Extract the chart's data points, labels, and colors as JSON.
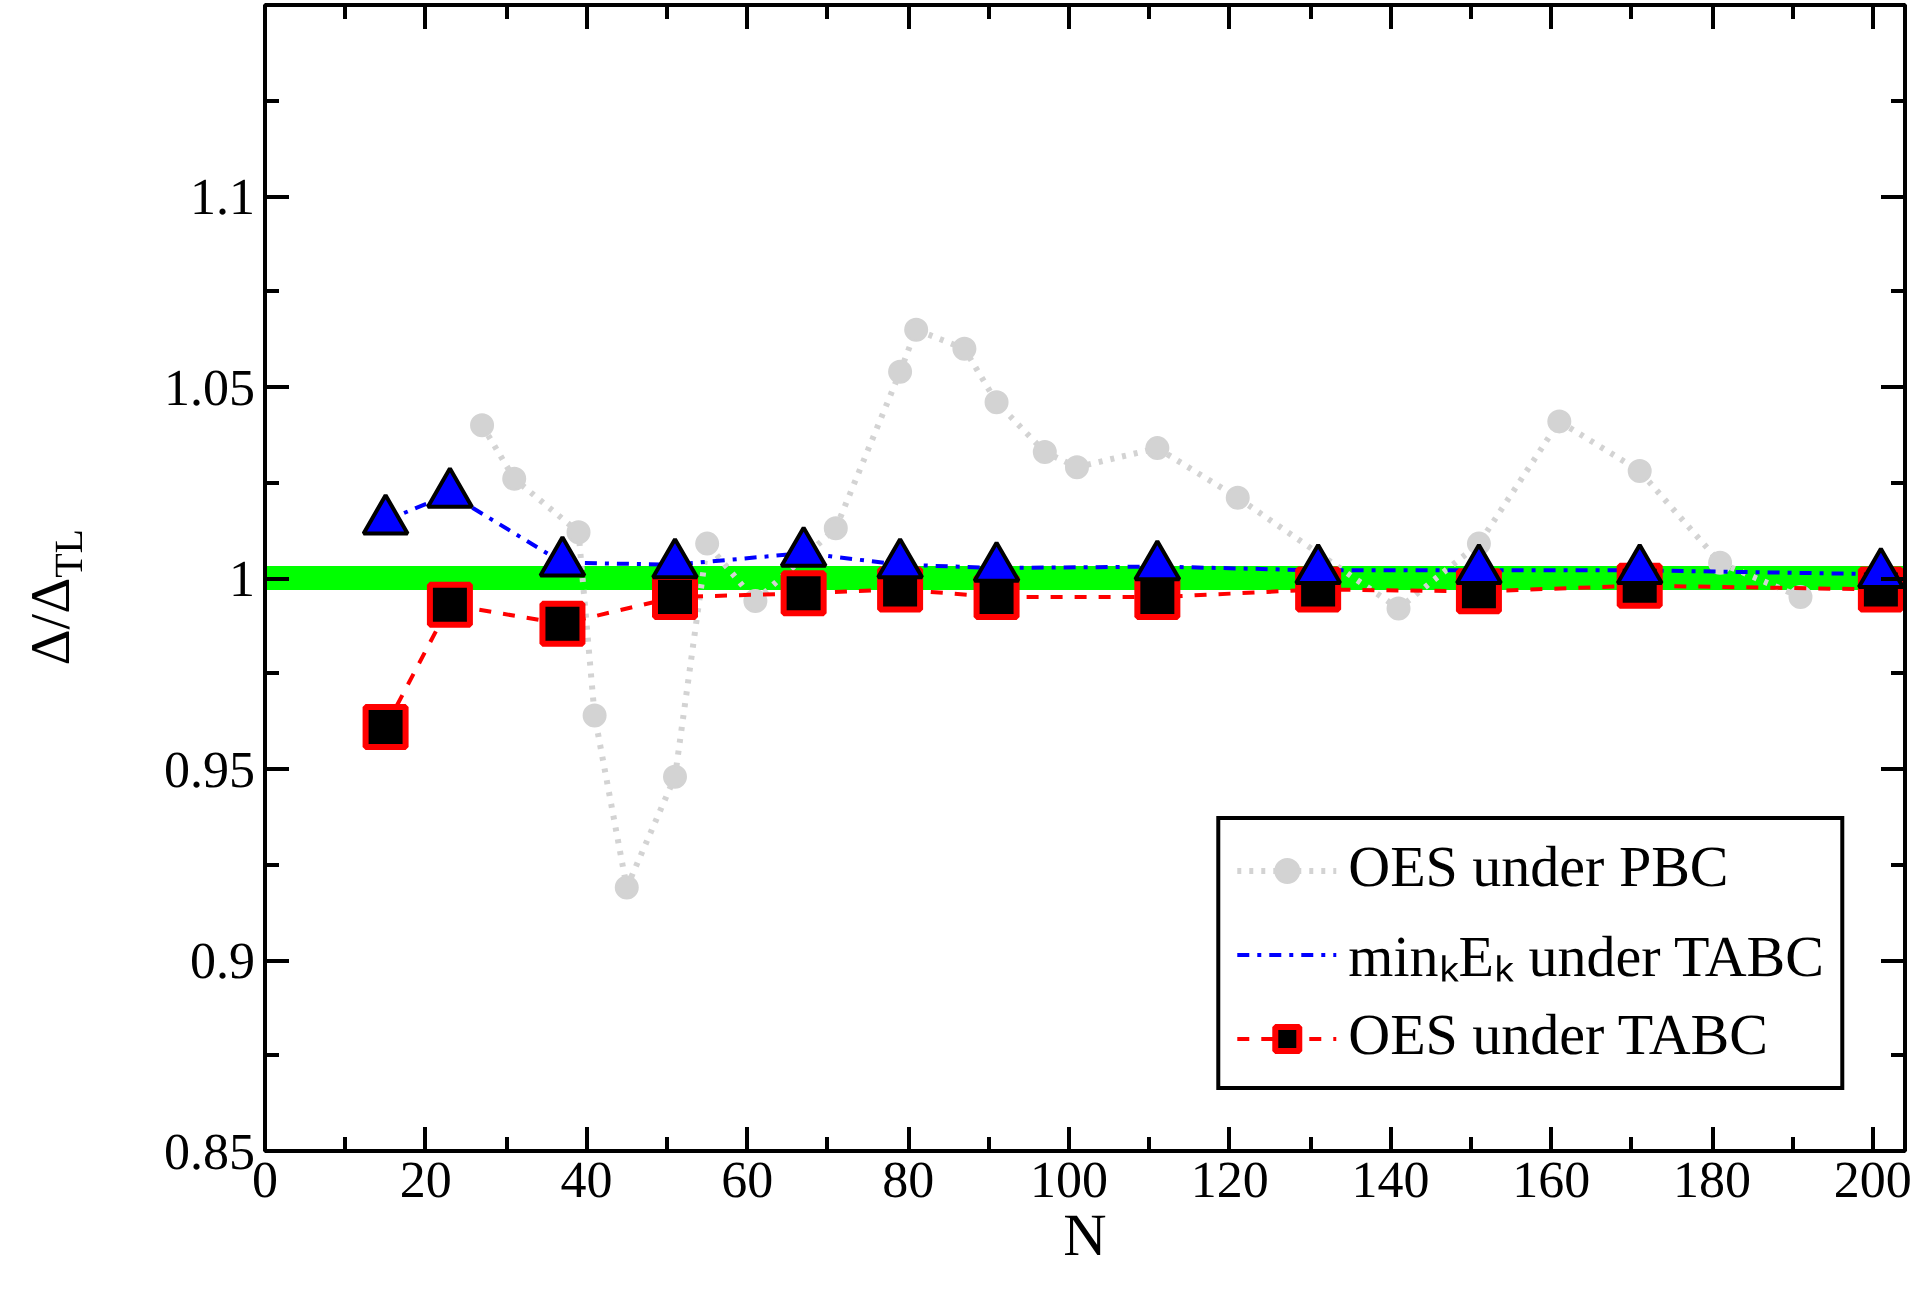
{
  "chart_data": {
    "type": "line",
    "xlabel": "N",
    "ylabel": "Δ/Δ$_{TL}$",
    "xlim": [
      0,
      204
    ],
    "ylim": [
      0.85,
      1.15
    ],
    "xticks": [
      0,
      20,
      40,
      60,
      80,
      100,
      120,
      140,
      160,
      180,
      200
    ],
    "yticks": [
      0.85,
      0.9,
      0.95,
      1,
      1.05,
      1.1
    ],
    "legend": "bottom right",
    "series": [
      {
        "name": "OES under PBC",
        "color": "#d3d3d3",
        "marker": "circle",
        "line_style": "dotted",
        "x": [
          27,
          31,
          39,
          41,
          45,
          51,
          55,
          61,
          71,
          79,
          81,
          87,
          91,
          97,
          101,
          111,
          121,
          141,
          151,
          161,
          171,
          181,
          191
        ],
        "values": [
          1.04,
          1.026,
          1.012,
          0.964,
          0.919,
          0.948,
          1.009,
          0.994,
          1.013,
          1.054,
          1.065,
          1.06,
          1.046,
          1.033,
          1.029,
          1.034,
          1.021,
          0.992,
          1.009,
          1.041,
          1.028,
          1.004,
          0.995
        ]
      },
      {
        "name": "minₖEₖ under TABC",
        "color": "#0000ff",
        "marker": "triangle",
        "line_style": "dashdot",
        "x": [
          15,
          23,
          37,
          51,
          67,
          79,
          91,
          111,
          131,
          151,
          171,
          201
        ],
        "values": [
          1.015,
          1.022,
          1.004,
          1.0035,
          1.0065,
          1.0035,
          1.0026,
          1.003,
          1.002,
          1.002,
          1.002,
          1.001
        ]
      },
      {
        "name": "OES under TABC",
        "color": "#ff0000",
        "marker": "square",
        "line_style": "dashed",
        "x": [
          15,
          23,
          37,
          51,
          67,
          79,
          91,
          111,
          131,
          151,
          171,
          201
        ],
        "values": [
          0.961,
          0.993,
          0.988,
          0.995,
          0.996,
          0.997,
          0.995,
          0.995,
          0.997,
          0.9965,
          0.998,
          0.997
        ]
      }
    ],
    "ref_lines": [
      {
        "axis": "y",
        "value": 1,
        "color": "#00ff00",
        "line_style": "solid"
      }
    ]
  }
}
